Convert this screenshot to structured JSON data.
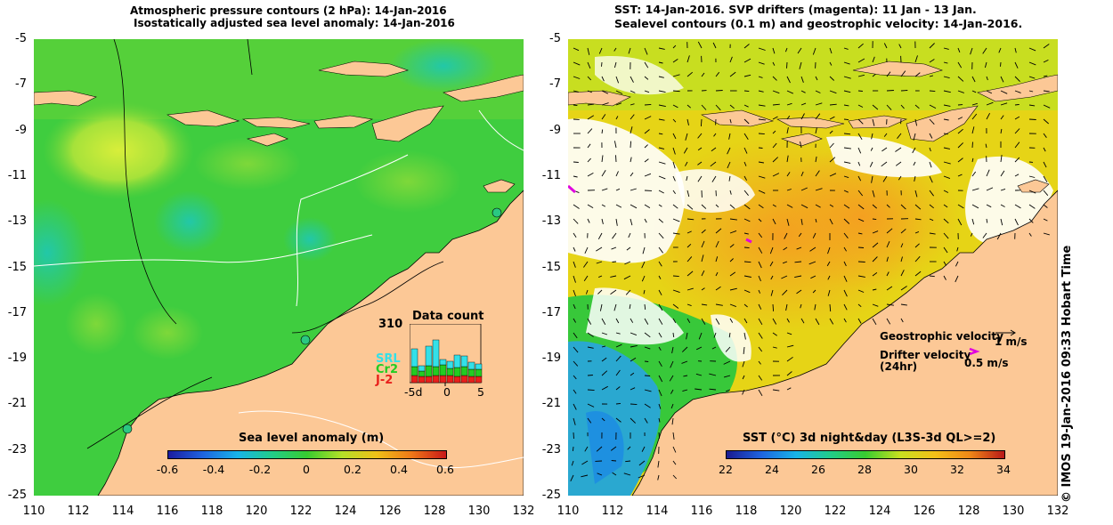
{
  "left_panel": {
    "title_line1": "Atmospheric pressure contours (2 hPa): 14-Jan-2016",
    "title_line2": "Isostatically adjusted sea level anomaly: 14-Jan-2016",
    "colorbar_label": "Sea level anomaly (m)",
    "colorbar_ticks": [
      "-0.6",
      "-0.4",
      "-0.2",
      "0",
      "0.2",
      "0.4",
      "0.6"
    ],
    "inset": {
      "title": "Data count",
      "max_label": "310",
      "series_labels": [
        "SRL",
        "Cr2",
        "J-2"
      ],
      "series_colors": [
        "#33e0e8",
        "#22cc22",
        "#e8201c"
      ],
      "x_ticks": [
        "-5d",
        "0",
        "5"
      ]
    }
  },
  "right_panel": {
    "title_line1": "SST: 14-Jan-2016. SVP drifters (magenta): 11 Jan - 13 Jan.",
    "title_line2": "Sealevel contours (0.1 m) and geostrophic velocity: 14-Jan-2016.",
    "colorbar_label": "SST (°C) 3d night&day (L3S-3d QL>=2)",
    "colorbar_ticks": [
      "22",
      "24",
      "26",
      "28",
      "30",
      "32",
      "34"
    ],
    "legend_geostrophic": "Geostrophic velocity",
    "legend_geostrophic_scale": "1 m/s",
    "legend_drifter_line1": "Drifter velocity",
    "legend_drifter_line2": "(24hr)",
    "legend_drifter_scale": "0.5 m/s",
    "legend_drifter_color": "#e000e0"
  },
  "lat_ticks": [
    "-5",
    "-7",
    "-9",
    "-11",
    "-13",
    "-15",
    "-17",
    "-19",
    "-21",
    "-23",
    "-25"
  ],
  "lon_ticks": [
    "110",
    "112",
    "114",
    "116",
    "118",
    "120",
    "122",
    "124",
    "126",
    "128",
    "130",
    "132"
  ],
  "credit": "© IMOS 19-Jan-2016 09:33 Hobart Time",
  "colors": {
    "land": "#fcc896",
    "ocean_green": "#33cc33",
    "sst_orange": "#f6b020"
  }
}
